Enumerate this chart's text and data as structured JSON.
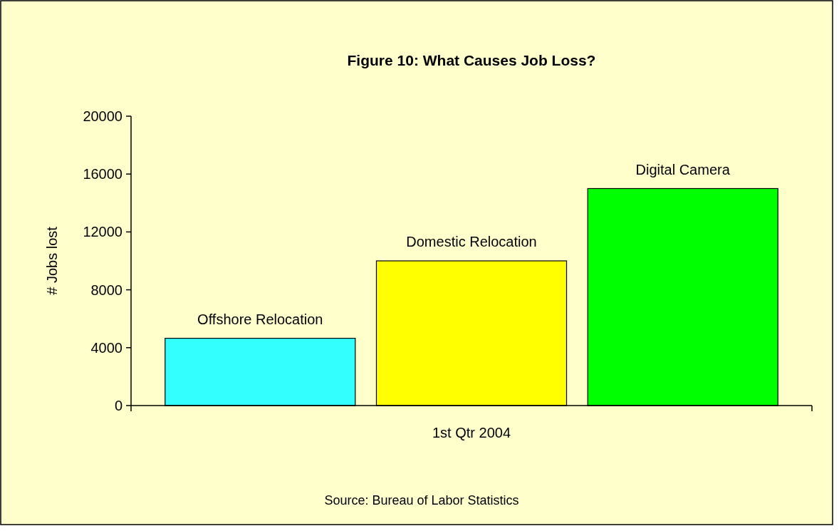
{
  "chart_data": {
    "type": "bar",
    "title": "Figure 10: What Causes Job Loss?",
    "ylabel": "# Jobs lost",
    "categories": [
      "1st Qtr 2004"
    ],
    "series": [
      {
        "name": "Offshore Relocation",
        "color": "#33ffff",
        "values": [
          4650
        ]
      },
      {
        "name": "Domestic Relocation",
        "color": "#ffff00",
        "values": [
          10000
        ]
      },
      {
        "name": "Digital Camera",
        "color": "#00ff00",
        "values": [
          15000
        ]
      }
    ],
    "ylim": [
      0,
      20000
    ],
    "yticks": [
      0,
      4000,
      8000,
      12000,
      16000,
      20000
    ],
    "grid": false,
    "annotations": [
      "Source: Bureau of Labor Statistics"
    ]
  }
}
